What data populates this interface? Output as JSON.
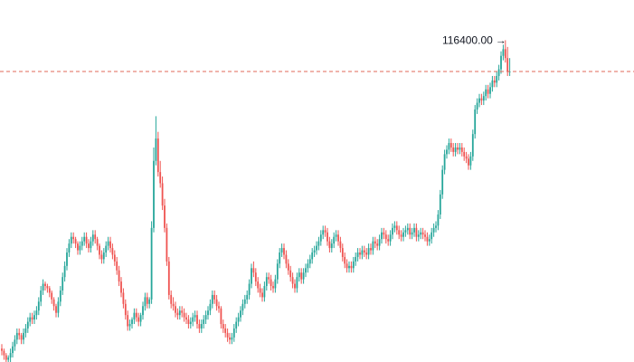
{
  "chart_data": {
    "type": "candlestick",
    "title": "",
    "xlabel": "",
    "ylabel": "",
    "ylim": [
      102000,
      118200
    ],
    "grid": false,
    "max_marker": {
      "label": "116400.00",
      "value": 116400.0
    },
    "price_line": {
      "value": 115000,
      "color": "#e26a5a",
      "style": "dashed"
    },
    "colors": {
      "up": "#26a69a",
      "down": "#ef5350",
      "text": "#131722"
    },
    "close": [
      102500,
      102300,
      102100,
      102200,
      102400,
      102700,
      103000,
      103300,
      103200,
      103000,
      103300,
      103500,
      103800,
      104000,
      103900,
      104100,
      104300,
      104700,
      105200,
      105500,
      105400,
      105300,
      105100,
      104800,
      104500,
      104200,
      104700,
      105200,
      105800,
      106300,
      106900,
      107300,
      107600,
      107500,
      107300,
      107000,
      107200,
      107400,
      107600,
      107300,
      107100,
      107400,
      107700,
      107500,
      107200,
      106800,
      106600,
      106900,
      107200,
      107400,
      107100,
      106800,
      106500,
      106100,
      105600,
      105100,
      104600,
      104100,
      103600,
      103700,
      103900,
      104200,
      104000,
      103800,
      104100,
      104500,
      104900,
      104600,
      104800,
      108000,
      111000,
      112000,
      110500,
      110000,
      109000,
      108000,
      106500,
      105000,
      104600,
      104500,
      104200,
      104100,
      104300,
      104200,
      104000,
      103900,
      103700,
      103800,
      104000,
      104100,
      103700,
      103500,
      103700,
      103900,
      104100,
      104300,
      104600,
      105000,
      104800,
      104500,
      104400,
      103700,
      103500,
      103300,
      103100,
      103000,
      103100,
      103500,
      103800,
      104000,
      104300,
      104600,
      104800,
      105000,
      105500,
      106200,
      106000,
      105600,
      105300,
      105100,
      104900,
      105400,
      105800,
      105700,
      105400,
      105300,
      105700,
      106400,
      106900,
      107100,
      106800,
      106400,
      106100,
      105800,
      105500,
      105300,
      105800,
      106000,
      105700,
      106000,
      106200,
      106400,
      106600,
      106900,
      107000,
      107200,
      107400,
      107700,
      107900,
      107800,
      107400,
      107100,
      107300,
      107600,
      107700,
      107400,
      107100,
      106700,
      106400,
      106200,
      106300,
      106200,
      106500,
      106700,
      106900,
      106800,
      107000,
      106900,
      106800,
      107100,
      107000,
      107400,
      107300,
      107200,
      107500,
      107800,
      107700,
      107500,
      107400,
      107700,
      108000,
      108100,
      107900,
      107700,
      107600,
      107800,
      107900,
      108000,
      107700,
      107800,
      108000,
      107600,
      107700,
      107800,
      107700,
      107600,
      107400,
      107500,
      107800,
      108000,
      108100,
      108600,
      109500,
      110600,
      111300,
      111500,
      111800,
      111600,
      111400,
      111600,
      111500,
      111600,
      111400,
      111200,
      111100,
      110800,
      111200,
      112200,
      113300,
      113600,
      113800,
      113700,
      113900,
      114200,
      114000,
      114300,
      114600,
      114500,
      114800,
      115100,
      115700,
      116000,
      115600,
      115000,
      115000
    ],
    "open": [
      102600,
      102500,
      102300,
      102100,
      102200,
      102400,
      102700,
      103000,
      103300,
      103200,
      103000,
      103300,
      103500,
      103800,
      104000,
      103900,
      104100,
      104300,
      104700,
      105200,
      105500,
      105400,
      105300,
      105100,
      104800,
      104500,
      104200,
      104700,
      105200,
      105800,
      106300,
      106900,
      107300,
      107600,
      107500,
      107300,
      107000,
      107200,
      107400,
      107600,
      107300,
      107100,
      107400,
      107700,
      107500,
      107200,
      106800,
      106600,
      106900,
      107200,
      107400,
      107100,
      106800,
      106500,
      106100,
      105600,
      105100,
      104600,
      104100,
      103600,
      103700,
      103900,
      104200,
      104000,
      103800,
      104100,
      104500,
      104900,
      104600,
      104800,
      108000,
      111000,
      112000,
      110500,
      110000,
      109000,
      108000,
      106500,
      105000,
      104600,
      104500,
      104200,
      104100,
      104300,
      104200,
      104000,
      103900,
      103700,
      103800,
      104000,
      104100,
      103700,
      103500,
      103700,
      103900,
      104100,
      104300,
      104600,
      105000,
      104800,
      104500,
      104400,
      103700,
      103500,
      103300,
      103100,
      103000,
      103100,
      103500,
      103800,
      104000,
      104300,
      104600,
      104800,
      105000,
      105500,
      106200,
      106000,
      105600,
      105300,
      105100,
      104900,
      105400,
      105800,
      105700,
      105400,
      105300,
      105700,
      106400,
      106900,
      107100,
      106800,
      106400,
      106100,
      105800,
      105500,
      105300,
      105800,
      106000,
      105700,
      106000,
      106200,
      106400,
      106600,
      106900,
      107000,
      107200,
      107400,
      107700,
      107900,
      107800,
      107400,
      107100,
      107300,
      107600,
      107700,
      107400,
      107100,
      106700,
      106400,
      106200,
      106300,
      106200,
      106500,
      106700,
      106900,
      106800,
      107000,
      106900,
      106800,
      107100,
      107000,
      107400,
      107300,
      107200,
      107500,
      107800,
      107700,
      107500,
      107400,
      107700,
      108000,
      108100,
      107900,
      107700,
      107600,
      107800,
      107900,
      108000,
      107700,
      107800,
      108000,
      107600,
      107700,
      107800,
      107700,
      107600,
      107400,
      107500,
      107800,
      108000,
      108100,
      108600,
      109500,
      110600,
      111300,
      111500,
      111800,
      111600,
      111400,
      111600,
      111500,
      111600,
      111400,
      111200,
      111100,
      110800,
      111200,
      112200,
      113300,
      113600,
      113800,
      113700,
      113900,
      114200,
      114000,
      114300,
      114600,
      114500,
      114800,
      115100,
      115700,
      116000,
      115600,
      115000
    ],
    "high": [
      102800,
      102600,
      102400,
      102300,
      102600,
      102900,
      103200,
      103500,
      103500,
      103300,
      103500,
      103700,
      104000,
      104200,
      104200,
      104300,
      104500,
      104900,
      105400,
      105700,
      105600,
      105500,
      105400,
      105200,
      104900,
      104600,
      104900,
      105400,
      106000,
      106500,
      107100,
      107500,
      107800,
      107800,
      107600,
      107400,
      107400,
      107600,
      107800,
      107800,
      107500,
      107600,
      107900,
      107900,
      107600,
      107300,
      107000,
      107100,
      107400,
      107600,
      107600,
      107300,
      107000,
      106700,
      106300,
      105800,
      105300,
      104800,
      104300,
      103900,
      104000,
      104400,
      104400,
      104200,
      104200,
      104700,
      105100,
      105100,
      104900,
      108300,
      111600,
      113000,
      112300,
      111000,
      110300,
      109300,
      108200,
      106700,
      105200,
      104900,
      104700,
      104400,
      104500,
      104500,
      104400,
      104200,
      104100,
      104000,
      104200,
      104300,
      104300,
      103900,
      103900,
      104100,
      104300,
      104500,
      104800,
      105200,
      105200,
      105000,
      104700,
      104500,
      103900,
      103700,
      103500,
      103300,
      103300,
      103700,
      104000,
      104200,
      104500,
      104800,
      105000,
      105200,
      105700,
      106400,
      106500,
      106200,
      105800,
      105500,
      105300,
      105600,
      106000,
      106000,
      105900,
      105600,
      105900,
      106600,
      107100,
      107300,
      107300,
      107000,
      106600,
      106300,
      106000,
      105700,
      106000,
      106200,
      106200,
      106200,
      106400,
      106600,
      106800,
      107100,
      107200,
      107400,
      107600,
      107900,
      108100,
      108100,
      108000,
      107600,
      107500,
      107800,
      107900,
      107900,
      107600,
      107300,
      106900,
      106600,
      106500,
      106500,
      106700,
      106900,
      107100,
      107100,
      107200,
      107200,
      107100,
      107300,
      107300,
      107600,
      107600,
      107500,
      107700,
      108000,
      108000,
      107900,
      107700,
      107900,
      108200,
      108300,
      108300,
      108100,
      107900,
      108000,
      108100,
      108200,
      108200,
      108000,
      108200,
      108200,
      107900,
      108000,
      108000,
      107900,
      107800,
      107700,
      108000,
      108200,
      108300,
      108800,
      109700,
      110800,
      111500,
      111700,
      112000,
      112000,
      111800,
      111800,
      111800,
      111800,
      111800,
      111600,
      111400,
      111300,
      111400,
      112400,
      113500,
      113800,
      114000,
      114000,
      114100,
      114400,
      114400,
      114500,
      114800,
      114800,
      115000,
      115300,
      115900,
      116200,
      116400,
      116100,
      115600
    ],
    "low": [
      102300,
      102100,
      101900,
      101900,
      102000,
      102200,
      102500,
      102800,
      103000,
      102800,
      102800,
      103100,
      103300,
      103600,
      103700,
      103700,
      103900,
      104100,
      104500,
      105000,
      105200,
      105100,
      104900,
      104600,
      104300,
      104000,
      104000,
      104500,
      105000,
      105600,
      106100,
      106700,
      107100,
      107300,
      107100,
      106800,
      106800,
      107000,
      107200,
      107100,
      106900,
      106900,
      107200,
      107300,
      107000,
      106600,
      106400,
      106400,
      106700,
      107000,
      106900,
      106600,
      106300,
      105900,
      105400,
      104900,
      104400,
      103900,
      103400,
      103400,
      103500,
      103700,
      103800,
      103600,
      103600,
      103900,
      104300,
      104400,
      104400,
      104600,
      107800,
      110800,
      110300,
      109800,
      108800,
      107800,
      106300,
      104800,
      104400,
      104300,
      104000,
      103900,
      103900,
      104000,
      103800,
      103700,
      103500,
      103500,
      103600,
      103800,
      103500,
      103300,
      103300,
      103500,
      103700,
      103900,
      104100,
      104400,
      104600,
      104300,
      104200,
      103500,
      103300,
      103100,
      102900,
      102800,
      102800,
      102900,
      103300,
      103600,
      103800,
      104100,
      104400,
      104600,
      104800,
      105300,
      105800,
      105400,
      105100,
      104900,
      104700,
      104700,
      105200,
      105500,
      105200,
      105100,
      105100,
      105500,
      106200,
      106700,
      106600,
      106200,
      105900,
      105600,
      105300,
      105100,
      105100,
      105600,
      105500,
      105500,
      105800,
      106000,
      106200,
      106400,
      106700,
      106800,
      107000,
      107200,
      107500,
      107600,
      107200,
      106900,
      106900,
      107100,
      107400,
      107200,
      106900,
      106500,
      106200,
      106000,
      106000,
      106000,
      106000,
      106300,
      106500,
      106600,
      106600,
      106700,
      106600,
      106600,
      106800,
      106800,
      107100,
      107000,
      107000,
      107300,
      107500,
      107300,
      107200,
      107200,
      107500,
      107800,
      107700,
      107500,
      107400,
      107400,
      107600,
      107700,
      107500,
      107500,
      107600,
      107400,
      107400,
      107500,
      107500,
      107400,
      107200,
      107200,
      107300,
      107600,
      107800,
      107900,
      108400,
      109300,
      110400,
      111100,
      111300,
      111400,
      111200,
      111200,
      111300,
      111300,
      111200,
      111000,
      110900,
      110600,
      110600,
      111000,
      112000,
      113100,
      113400,
      113500,
      113500,
      113700,
      113800,
      113800,
      114100,
      114300,
      114300,
      114600,
      114900,
      115500,
      115400,
      114800,
      114800
    ]
  }
}
